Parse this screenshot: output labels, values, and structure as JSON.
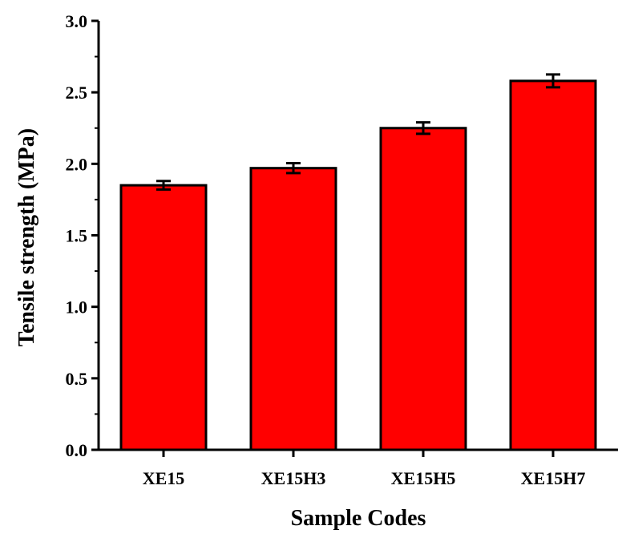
{
  "chart_data": {
    "type": "bar",
    "categories": [
      "XE15",
      "XE15H3",
      "XE15H5",
      "XE15H7"
    ],
    "values": [
      1.85,
      1.97,
      2.25,
      2.58
    ],
    "errors": [
      0.03,
      0.035,
      0.04,
      0.045
    ],
    "xlabel": "Sample Codes",
    "ylabel": "Tensile strength (MPa)",
    "ylim": [
      0.0,
      3.0
    ],
    "yticks": [
      "0.0",
      "0.5",
      "1.0",
      "1.5",
      "2.0",
      "2.5",
      "3.0"
    ],
    "grid": false,
    "bar_color": "#ff0000",
    "edge_color": "#000000"
  }
}
